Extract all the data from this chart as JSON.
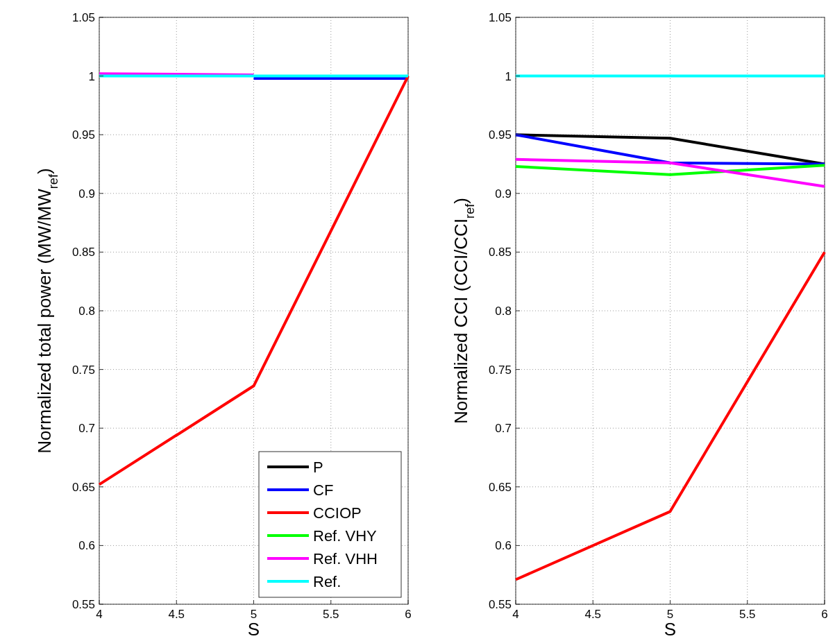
{
  "chart_data": [
    {
      "type": "line",
      "x": [
        4,
        5,
        6
      ],
      "xlabel": "S",
      "ylabel": "Normalized total power (MW/MW$_{ref}$)",
      "xlim": [
        4,
        6
      ],
      "ylim": [
        0.55,
        1.05
      ],
      "xticks": [
        4,
        4.5,
        5,
        5.5,
        6
      ],
      "yticks": [
        0.55,
        0.6,
        0.65,
        0.7,
        0.75,
        0.8,
        0.85,
        0.9,
        0.95,
        1,
        1.05
      ],
      "grid": true,
      "legend": "bottom right",
      "line_style": "solid",
      "series": [
        {
          "name": "P",
          "color": "#000000",
          "values": [
            null,
            null,
            null
          ]
        },
        {
          "name": "CF",
          "color": "#0000ff",
          "values": [
            null,
            0.998,
            0.998
          ]
        },
        {
          "name": "CCIOP",
          "color": "#ff0000",
          "values": [
            0.652,
            0.736,
            1
          ]
        },
        {
          "name": "Ref. VHY",
          "color": "#00ff00",
          "values": [
            null,
            null,
            null
          ]
        },
        {
          "name": "Ref. VHH",
          "color": "#ff00ff",
          "values": [
            1.002,
            1.001,
            null
          ]
        },
        {
          "name": "Ref.",
          "color": "#00ffff",
          "values": [
            1,
            1,
            1
          ]
        }
      ]
    },
    {
      "type": "line",
      "x": [
        4,
        5,
        6
      ],
      "xlabel": "S",
      "ylabel": "Normalized CCI (CCI/CCI$_{ref}$)",
      "xlim": [
        4,
        6
      ],
      "ylim": [
        0.55,
        1.05
      ],
      "xticks": [
        4,
        4.5,
        5,
        5.5,
        6
      ],
      "yticks": [
        0.55,
        0.6,
        0.65,
        0.7,
        0.75,
        0.8,
        0.85,
        0.9,
        0.95,
        1,
        1.05
      ],
      "grid": true,
      "line_style": "solid",
      "series": [
        {
          "color": "#000000",
          "values": [
            0.95,
            0.947,
            0.925
          ]
        },
        {
          "color": "#0000ff",
          "values": [
            0.95,
            0.926,
            0.925
          ]
        },
        {
          "color": "#ff0000",
          "values": [
            0.571,
            0.629,
            0.85
          ]
        },
        {
          "color": "#00ff00",
          "values": [
            0.923,
            0.916,
            0.924
          ]
        },
        {
          "color": "#ff00ff",
          "values": [
            0.929,
            0.926,
            0.906
          ]
        },
        {
          "color": "#00ffff",
          "values": [
            1,
            1,
            1
          ]
        }
      ]
    }
  ]
}
